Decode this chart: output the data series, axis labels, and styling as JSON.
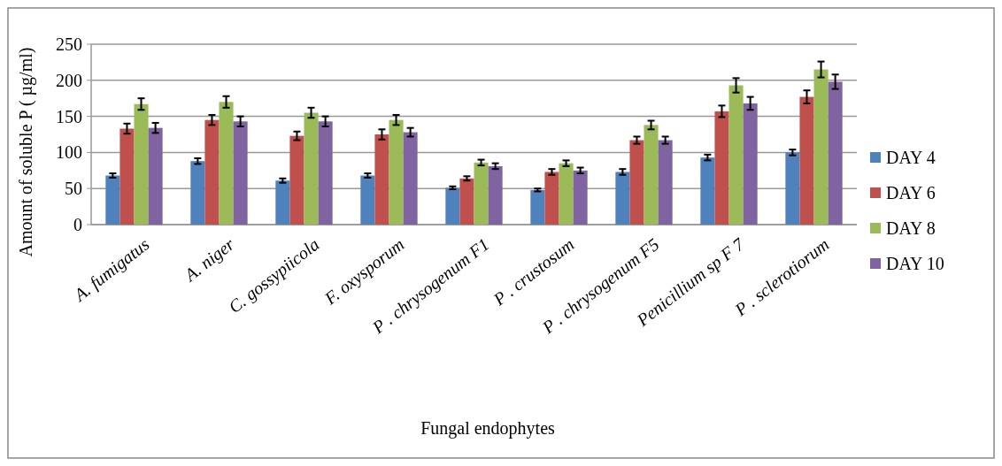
{
  "chart_data": {
    "type": "bar",
    "xlabel": "Fungal endophytes",
    "ylabel": "Amount of soluble P ( µg/ml)",
    "categories": [
      "A. fumigatus",
      "A.  niger",
      "C. gossypiicola",
      "F. oxysporum",
      "P .  chrysogenum F1",
      "P .  crustosum",
      "P .  chrysogenum F5",
      "Penicillium sp F 7",
      "P . sclerotiorum"
    ],
    "series": [
      {
        "name": "DAY 4",
        "color": "#4f81bd",
        "values": [
          68,
          88,
          61,
          68,
          51,
          48,
          73,
          93,
          100
        ],
        "errors": [
          3,
          4,
          3,
          3,
          2,
          2,
          4,
          4,
          4
        ]
      },
      {
        "name": "DAY 6",
        "color": "#c0504d",
        "values": [
          133,
          145,
          123,
          125,
          64,
          73,
          117,
          157,
          177
        ],
        "errors": [
          7,
          7,
          6,
          7,
          3,
          4,
          5,
          8,
          9
        ]
      },
      {
        "name": "DAY 8",
        "color": "#9bbb59",
        "values": [
          167,
          170,
          155,
          145,
          86,
          85,
          138,
          193,
          215
        ],
        "errors": [
          8,
          8,
          7,
          7,
          4,
          4,
          6,
          10,
          11
        ]
      },
      {
        "name": "DAY 10",
        "color": "#8064a2",
        "values": [
          134,
          143,
          143,
          128,
          81,
          75,
          117,
          168,
          198
        ],
        "errors": [
          7,
          7,
          7,
          6,
          4,
          4,
          5,
          9,
          10
        ]
      }
    ],
    "ylim": [
      0,
      250
    ],
    "yticks": [
      0,
      50,
      100,
      150,
      200,
      250
    ],
    "grid": "y",
    "legend": "right"
  }
}
